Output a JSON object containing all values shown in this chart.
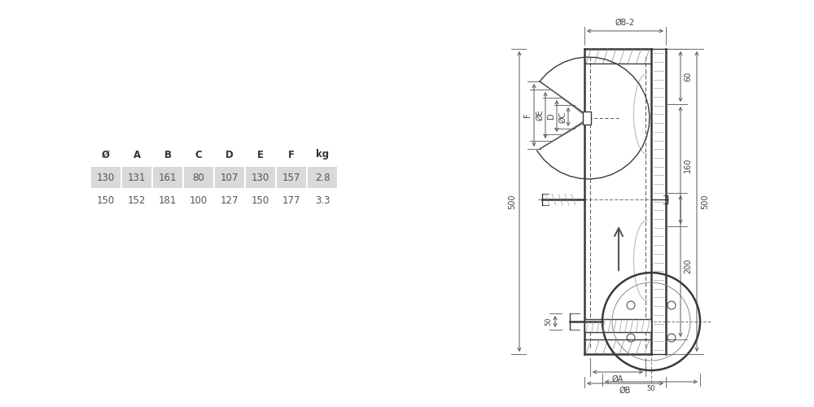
{
  "table_headers": [
    "Ø",
    "A",
    "B",
    "C",
    "D",
    "E",
    "F",
    "kg"
  ],
  "table_rows": [
    [
      "130",
      "131",
      "161",
      "80",
      "107",
      "130",
      "157",
      "2.8"
    ],
    [
      "150",
      "152",
      "181",
      "100",
      "127",
      "150",
      "177",
      "3.3"
    ]
  ],
  "row_colors": [
    "#d9d9d9",
    "#ffffff"
  ],
  "bg_color": "#ffffff",
  "line_color": "#3a3a3a",
  "dim_color": "#3a3a3a"
}
